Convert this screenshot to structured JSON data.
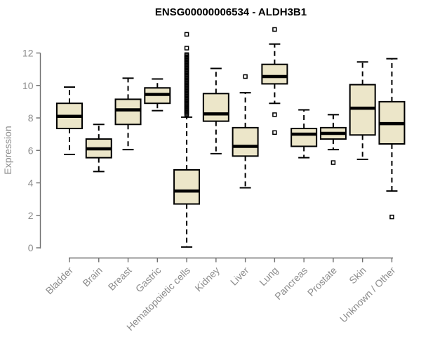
{
  "colors": {
    "background": "#ffffff",
    "box_fill": "#ece6c9",
    "box_stroke": "#000000",
    "median_color": "#000000",
    "whisker_color": "#000000",
    "outlier_color": "#000000",
    "axis_line": "#6e6e6e",
    "axis_text": "#8c8c8c",
    "title_text": "#000000"
  },
  "chart_data": {
    "type": "boxplot",
    "title": "ENSG00000006534 - ALDH3B1",
    "xlabel": "",
    "ylabel": "Expression",
    "ylim": [
      0,
      12
    ],
    "yticks": [
      "0",
      "2",
      "4",
      "6",
      "8",
      "10",
      "12"
    ],
    "grid": "off",
    "legend": "none",
    "categories": [
      "Bladder",
      "Brain",
      "Breast",
      "Gastric",
      "Hematopoietic cells",
      "Kidney",
      "Liver",
      "Lung",
      "Pancreas",
      "Prostate",
      "Skin",
      "Unknown / Other"
    ],
    "boxes": [
      {
        "category": "Bladder",
        "whisker_low": 5.75,
        "q1": 7.35,
        "median": 8.1,
        "q3": 8.9,
        "whisker_high": 9.9,
        "outliers": []
      },
      {
        "category": "Brain",
        "whisker_low": 4.7,
        "q1": 5.55,
        "median": 6.1,
        "q3": 6.7,
        "whisker_high": 7.6,
        "outliers": []
      },
      {
        "category": "Breast",
        "whisker_low": 6.05,
        "q1": 7.6,
        "median": 8.5,
        "q3": 9.15,
        "whisker_high": 10.45,
        "outliers": []
      },
      {
        "category": "Gastric",
        "whisker_low": 8.45,
        "q1": 8.9,
        "median": 9.45,
        "q3": 9.85,
        "whisker_high": 10.4,
        "outliers": []
      },
      {
        "category": "Hematopoietic cells",
        "whisker_low": 0.05,
        "q1": 2.7,
        "median": 3.5,
        "q3": 4.8,
        "whisker_high": 8.05,
        "outliers": [
          13.15,
          12.3,
          11.9,
          11.83,
          11.75,
          11.68,
          11.6,
          11.53,
          11.45,
          11.38,
          11.3,
          11.23,
          11.15,
          11.08,
          11.0,
          10.93,
          10.85,
          10.78,
          10.7,
          10.63,
          10.55,
          10.48,
          10.4,
          10.33,
          10.25,
          10.18,
          10.1,
          10.03,
          9.95,
          9.88,
          9.8,
          9.73,
          9.65,
          9.58,
          9.5,
          9.43,
          9.35,
          9.28,
          9.2,
          9.13,
          9.05,
          8.98,
          8.9,
          8.83,
          8.75,
          8.68,
          8.6,
          8.53,
          8.45,
          8.38,
          8.3,
          8.23
        ]
      },
      {
        "category": "Kidney",
        "whisker_low": 5.8,
        "q1": 7.8,
        "median": 8.25,
        "q3": 9.5,
        "whisker_high": 11.05,
        "outliers": []
      },
      {
        "category": "Liver",
        "whisker_low": 3.7,
        "q1": 5.65,
        "median": 6.25,
        "q3": 7.4,
        "whisker_high": 9.55,
        "outliers": [
          10.55
        ]
      },
      {
        "category": "Lung",
        "whisker_low": 8.9,
        "q1": 10.1,
        "median": 10.55,
        "q3": 11.3,
        "whisker_high": 12.55,
        "outliers": [
          13.45,
          8.2,
          7.1
        ]
      },
      {
        "category": "Pancreas",
        "whisker_low": 5.55,
        "q1": 6.25,
        "median": 7.0,
        "q3": 7.35,
        "whisker_high": 8.5,
        "outliers": []
      },
      {
        "category": "Prostate",
        "whisker_low": 6.05,
        "q1": 6.7,
        "median": 7.05,
        "q3": 7.4,
        "whisker_high": 8.2,
        "outliers": [
          5.25
        ]
      },
      {
        "category": "Skin",
        "whisker_low": 5.45,
        "q1": 6.95,
        "median": 8.6,
        "q3": 10.05,
        "whisker_high": 11.45,
        "outliers": []
      },
      {
        "category": "Unknown / Other",
        "whisker_low": 3.5,
        "q1": 6.4,
        "median": 7.65,
        "q3": 9.0,
        "whisker_high": 11.65,
        "outliers": [
          1.9
        ]
      }
    ]
  }
}
